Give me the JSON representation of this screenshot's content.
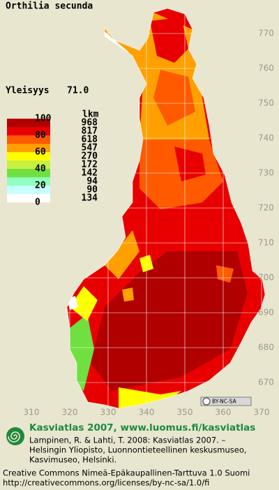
{
  "title": "Orthilia secunda",
  "frequency_label": "Yleisyys",
  "frequency_value": "71.0",
  "legend": {
    "scale_labels": [
      "100",
      "80",
      "60",
      "40",
      "20",
      "0"
    ],
    "count_header": "lkm",
    "classes": [
      {
        "color": "#b00000",
        "count": 968
      },
      {
        "color": "#e80000",
        "count": 817
      },
      {
        "color": "#ff5a00",
        "count": 618
      },
      {
        "color": "#ffa000",
        "count": 547
      },
      {
        "color": "#ffff00",
        "count": 270
      },
      {
        "color": "#c8f040",
        "count": 172
      },
      {
        "color": "#70e040",
        "count": 142
      },
      {
        "color": "#90ffc0",
        "count": 94
      },
      {
        "color": "#c8ffff",
        "count": 90
      },
      {
        "color": "#ffffff",
        "count": 134
      }
    ]
  },
  "grid": {
    "y_labels": [
      770,
      760,
      750,
      740,
      730,
      720,
      710,
      700,
      690,
      680,
      670
    ],
    "x_labels": [
      310,
      320,
      330,
      340,
      350,
      360,
      370
    ]
  },
  "license_badge": "BY-NC-SA",
  "footer": {
    "brand": "Kasviatlas 2007, www.luomus.fi/kasviatlas",
    "citation": [
      "Lampinen, R. & Lahti, T. 2008: Kasviatlas 2007. –",
      "Helsingin Yliopisto, Luonnontieteellinen keskusmuseo,",
      "Kasvimuseo, Helsinki."
    ],
    "license": [
      "Creative Commons Nimeä-Epäkaupallinen-Tarttuva 1.0 Suomi",
      "http://creativecommons.org/licenses/by-nc-sa/1.0/fi"
    ]
  }
}
